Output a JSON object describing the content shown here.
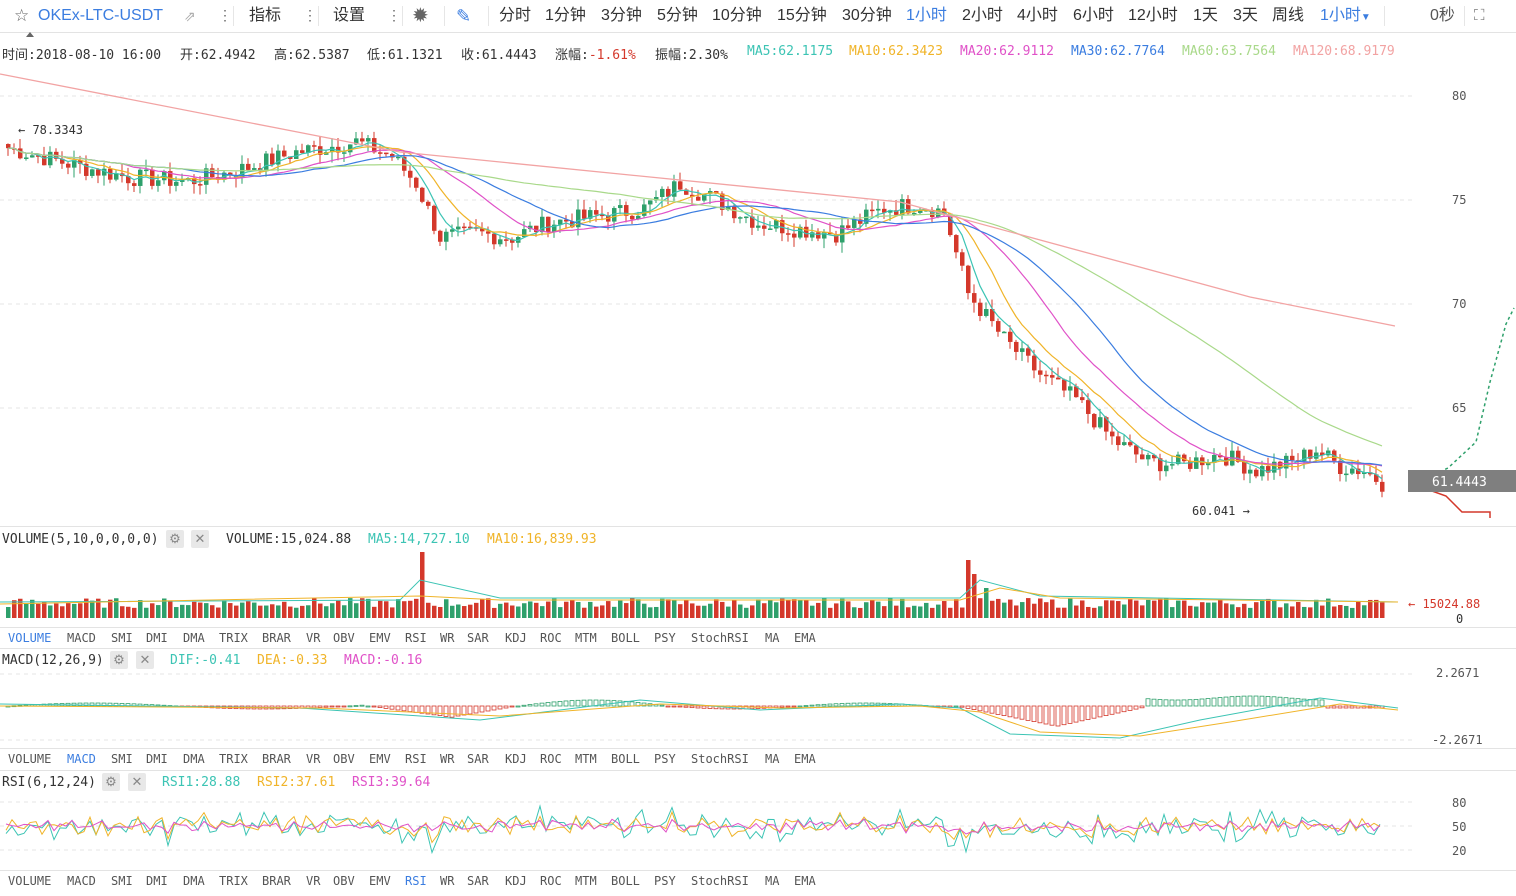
{
  "toolbar": {
    "symbol": "OKEx-LTC-USDT",
    "indicator_label": "指标",
    "settings_label": "设置",
    "periods": [
      "分时",
      "1分钟",
      "3分钟",
      "5分钟",
      "10分钟",
      "15分钟",
      "30分钟",
      "1小时",
      "2小时",
      "4小时",
      "6小时",
      "12小时",
      "1天",
      "3天",
      "周线"
    ],
    "active_period": "1小时",
    "selected_period": "1小时",
    "countdown": "0秒",
    "accent": "#3b7de0"
  },
  "info": {
    "time_label": "时间:2018-08-10 16:00",
    "open_label": "开:62.4942",
    "high_label": "高:62.5387",
    "low_label": "低:61.1321",
    "close_label": "收:61.4443",
    "change_label": "涨幅:",
    "change_value": "-1.61%",
    "amp_label": "振幅:2.30%",
    "ma5": "MA5:62.1175",
    "ma10": "MA10:62.3423",
    "ma20": "MA20:62.9112",
    "ma30": "MA30:62.7764",
    "ma60": "MA60:63.7564",
    "ma120": "MA120:68.9179"
  },
  "colors": {
    "up": "#2ea06b",
    "down": "#d4382b",
    "ma5": "#3cc4b4",
    "ma10": "#f0b429",
    "ma20": "#e052c8",
    "ma30": "#3b7de0",
    "ma60": "#a9d98a",
    "ma120": "#f2a3a3",
    "price_tag": "#7f7f7f"
  },
  "main_chart": {
    "y_ticks": [
      "80",
      "75",
      "70",
      "65"
    ],
    "max_marker": "78.3343",
    "min_marker": "60.041",
    "price_tag": "61.4443"
  },
  "volume_panel": {
    "title": "VOLUME(5,10,0,0,0,0)",
    "volume": "VOLUME:15,024.88",
    "ma5": "MA5:14,727.10",
    "ma10": "MA10:16,839.93",
    "last_value": "15024.88",
    "zero": "0"
  },
  "indicator_tabs": [
    "VOLUME",
    "MACD",
    "SMI",
    "DMI",
    "DMA",
    "TRIX",
    "BRAR",
    "VR",
    "OBV",
    "EMV",
    "RSI",
    "WR",
    "SAR",
    "KDJ",
    "ROC",
    "MTM",
    "BOLL",
    "PSY",
    "StochRSI",
    "MA",
    "EMA"
  ],
  "tabs_row1_active": "VOLUME",
  "tabs_row2_active": "MACD",
  "tabs_row3_active": "RSI",
  "macd_panel": {
    "title": "MACD(12,26,9)",
    "dif": "DIF:-0.41",
    "dea": "DEA:-0.33",
    "macd": "MACD:-0.16",
    "top": "2.2671",
    "bottom": "-2.2671"
  },
  "rsi_panel": {
    "title": "RSI(6,12,24)",
    "rsi1": "RSI1:28.88",
    "rsi2": "RSI2:37.61",
    "rsi3": "RSI3:39.64",
    "ticks": [
      "80",
      "50",
      "20"
    ]
  }
}
